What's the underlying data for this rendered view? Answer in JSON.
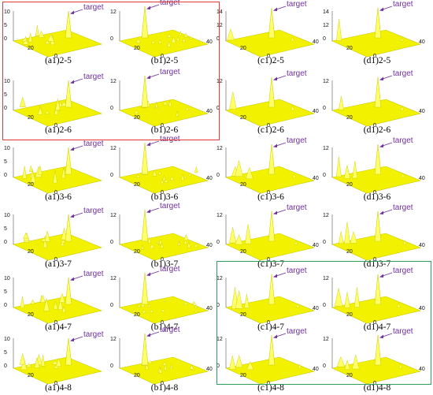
{
  "target_label": "target",
  "colors": {
    "surface": "#f2f200",
    "surface_edge": "#c8c800",
    "peak_light": "#ffff66",
    "axis": "#333333",
    "target_text": "#7030a0",
    "red_box": "#e53935",
    "green_box": "#2e9e5b"
  },
  "rows": [
    {
      "suffix": "2-5",
      "panels": [
        {
          "caption": "(a1)2-5",
          "ticks": {
            "z": [
              "10",
              "5",
              "0"
            ],
            "x": [
              "20",
              "0"
            ],
            "y": []
          }
        },
        {
          "caption": "(b1)2-5",
          "ticks": {
            "z": [
              "12",
              "0"
            ],
            "x": [
              "20",
              "0"
            ],
            "y": [
              "40"
            ]
          }
        },
        {
          "caption": "(c1)2-5",
          "ticks": {
            "z": [
              "14",
              "12",
              "0"
            ],
            "x": [
              "20",
              "0"
            ],
            "y": [
              "40"
            ]
          }
        },
        {
          "caption": "(d1)2-5",
          "ticks": {
            "z": [
              "14",
              "12",
              "0"
            ],
            "x": [
              "20",
              "0"
            ],
            "y": [
              "40"
            ]
          }
        }
      ]
    },
    {
      "suffix": "2-6",
      "panels": [
        {
          "caption": "(a1)2-6",
          "ticks": {
            "z": [
              "10",
              "5",
              "0"
            ],
            "x": [
              "20",
              "0"
            ],
            "y": []
          }
        },
        {
          "caption": "(b1)2-6",
          "ticks": {
            "z": [
              "12",
              "0"
            ],
            "x": [
              "20",
              "0"
            ],
            "y": [
              "40"
            ]
          }
        },
        {
          "caption": "(c1)2-6",
          "ticks": {
            "z": [
              "12",
              "0"
            ],
            "x": [
              "20",
              "0"
            ],
            "y": [
              "40"
            ]
          }
        },
        {
          "caption": "(d1)2-6",
          "ticks": {
            "z": [
              "12",
              "0"
            ],
            "x": [
              "20",
              "0"
            ],
            "y": [
              "40"
            ]
          }
        }
      ]
    },
    {
      "suffix": "3-6",
      "panels": [
        {
          "caption": "(a1)3-6",
          "ticks": {
            "z": [
              "10",
              "5",
              "0"
            ],
            "x": [
              "20",
              "0"
            ],
            "y": []
          }
        },
        {
          "caption": "(b1)3-6",
          "ticks": {
            "z": [
              "12",
              "0"
            ],
            "x": [
              "20",
              "0"
            ],
            "y": [
              "40"
            ]
          }
        },
        {
          "caption": "(c1)3-6",
          "ticks": {
            "z": [
              "12",
              "0"
            ],
            "x": [
              "20",
              "0"
            ],
            "y": [
              "40"
            ]
          }
        },
        {
          "caption": "(d1)3-6",
          "ticks": {
            "z": [
              "12",
              "0"
            ],
            "x": [
              "20",
              "0"
            ],
            "y": [
              "40"
            ]
          }
        }
      ]
    },
    {
      "suffix": "3-7",
      "panels": [
        {
          "caption": "(a1)3-7",
          "ticks": {
            "z": [
              "10",
              "5",
              "0"
            ],
            "x": [
              "20",
              "0"
            ],
            "y": []
          }
        },
        {
          "caption": "(b1)3-7",
          "ticks": {
            "z": [
              "12",
              "0"
            ],
            "x": [
              "20",
              "0"
            ],
            "y": [
              "40"
            ]
          }
        },
        {
          "caption": "(c1)3-7",
          "ticks": {
            "z": [
              "12",
              "0"
            ],
            "x": [
              "20",
              "0"
            ],
            "y": [
              "40"
            ]
          }
        },
        {
          "caption": "(d1)3-7",
          "ticks": {
            "z": [
              "12",
              "0"
            ],
            "x": [
              "20",
              "0"
            ],
            "y": [
              "40"
            ]
          }
        }
      ]
    },
    {
      "suffix": "4-7",
      "panels": [
        {
          "caption": "(a1)4-7",
          "ticks": {
            "z": [
              "10",
              "5",
              "0"
            ],
            "x": [
              "20",
              "0"
            ],
            "y": []
          }
        },
        {
          "caption": "(b1)4-7",
          "ticks": {
            "z": [
              "12",
              "0"
            ],
            "x": [
              "20",
              "0"
            ],
            "y": [
              "40"
            ]
          }
        },
        {
          "caption": "(c1)4-7",
          "ticks": {
            "z": [
              "12",
              "0"
            ],
            "x": [
              "20",
              "0"
            ],
            "y": [
              "40"
            ]
          }
        },
        {
          "caption": "(d1)4-7",
          "ticks": {
            "z": [
              "12",
              "0"
            ],
            "x": [
              "20",
              "0"
            ],
            "y": [
              "40"
            ]
          }
        }
      ]
    },
    {
      "suffix": "4-8",
      "panels": [
        {
          "caption": "(a1)4-8",
          "ticks": {
            "z": [
              "10",
              "5",
              "0"
            ],
            "x": [
              "20",
              "0"
            ],
            "y": []
          }
        },
        {
          "caption": "(b1)4-8",
          "ticks": {
            "z": [
              "12",
              "0"
            ],
            "x": [
              "20",
              "0"
            ],
            "y": [
              "40"
            ]
          }
        },
        {
          "caption": "(c1)4-8",
          "ticks": {
            "z": [
              "12",
              "0"
            ],
            "x": [
              "20",
              "0"
            ],
            "y": [
              "40"
            ]
          }
        },
        {
          "caption": "(d1)4-8",
          "ticks": {
            "z": [
              "12",
              "0"
            ],
            "x": [
              "20",
              "0"
            ],
            "y": [
              "40"
            ]
          }
        }
      ]
    }
  ]
}
